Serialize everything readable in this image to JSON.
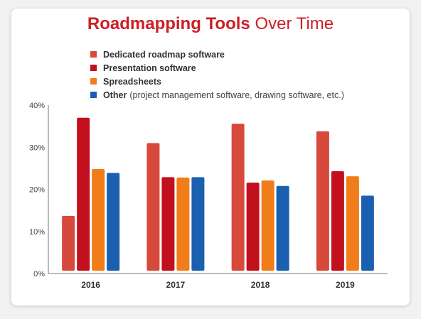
{
  "chart_data": {
    "type": "bar",
    "title_part1": "Roadmapping",
    "title_part2": "Tools",
    "title_part3": "Over Time",
    "categories": [
      "2016",
      "2017",
      "2018",
      "2019"
    ],
    "series": [
      {
        "name": "Dedicated roadmap software",
        "note": "",
        "color": "#d6493b",
        "values": [
          13.7,
          31.0,
          35.6,
          33.8
        ]
      },
      {
        "name": "Presentation software",
        "note": "",
        "color": "#c2101f",
        "values": [
          37.0,
          22.9,
          21.6,
          24.3
        ]
      },
      {
        "name": "Spreadsheets",
        "note": "",
        "color": "#f07d1a",
        "values": [
          24.8,
          22.8,
          22.1,
          23.1
        ]
      },
      {
        "name": "Other",
        "note": "(project management software, drawing software, etc.)",
        "color": "#1b5fb0",
        "values": [
          23.9,
          22.9,
          20.8,
          18.5
        ]
      }
    ],
    "ylim": [
      0,
      40
    ],
    "yticks": [
      "0%",
      "10%",
      "20%",
      "30%",
      "40%"
    ],
    "xlabel": "",
    "ylabel": "",
    "grid": false,
    "legend_position": "top"
  }
}
